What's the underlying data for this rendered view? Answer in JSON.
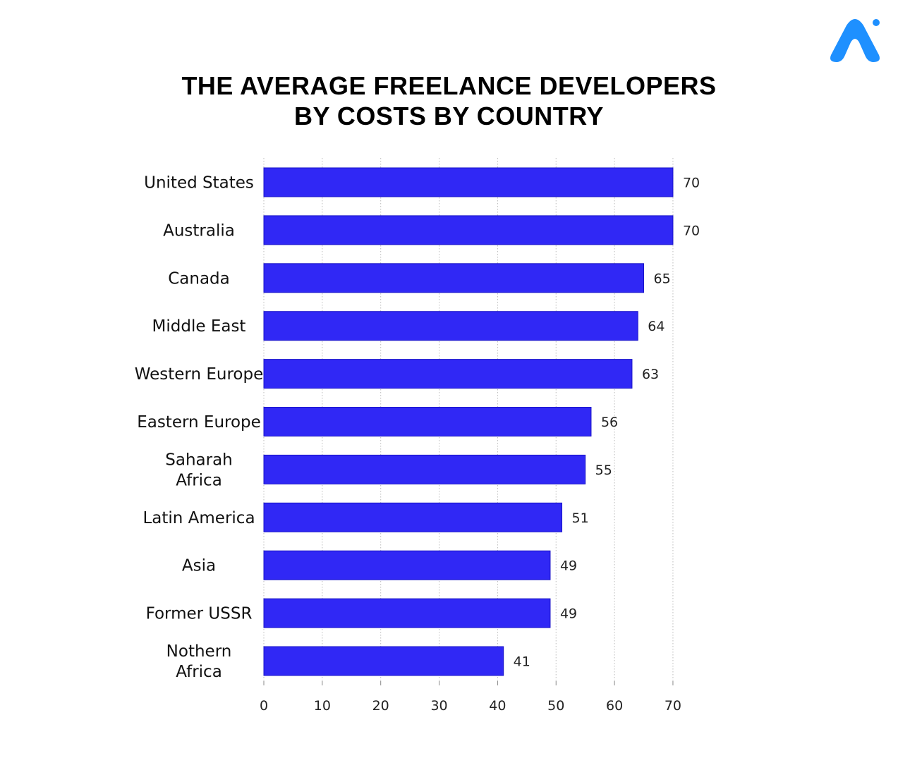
{
  "title": {
    "line1": "THE AVERAGE FREELANCE DEVELOPERS",
    "line2": "BY COSTS BY COUNTRY"
  },
  "logo": {
    "icon": "brand-logo-icon",
    "color": "#1e90ff"
  },
  "colors": {
    "bar": "#3028f5",
    "bar_border": "#1a14c8",
    "grid": "#bbbbbb"
  },
  "chart_data": {
    "type": "bar",
    "orientation": "horizontal",
    "categories": [
      [
        "United States"
      ],
      [
        "Australia"
      ],
      [
        "Canada"
      ],
      [
        "Middle East"
      ],
      [
        "Western Europe"
      ],
      [
        "Eastern Europe"
      ],
      [
        "Saharah",
        "Africa"
      ],
      [
        "Latin America"
      ],
      [
        "Asia"
      ],
      [
        "Former USSR"
      ],
      [
        "Nothern",
        "Africa"
      ]
    ],
    "values": [
      70,
      70,
      65,
      64,
      63,
      56,
      55,
      51,
      49,
      49,
      41
    ],
    "xlim": [
      0,
      70
    ],
    "xticks": [
      0,
      10,
      20,
      30,
      40,
      50,
      60,
      70
    ],
    "grid": "vertical dotted",
    "data_labels": true
  }
}
